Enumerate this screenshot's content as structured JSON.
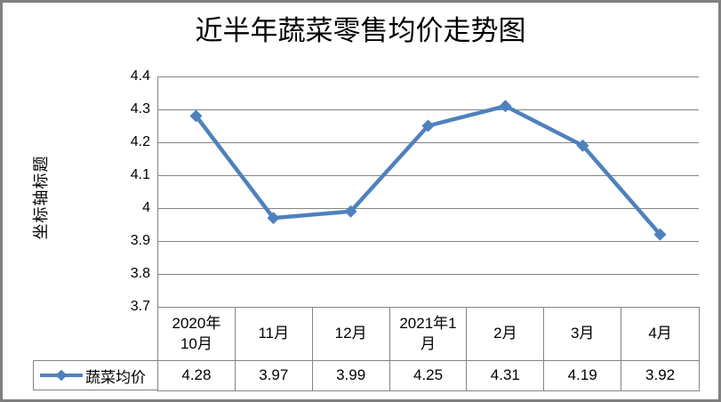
{
  "colors": {
    "line": "#4F81BD",
    "grid": "#848484",
    "frame": "#808080",
    "text": "#000000"
  },
  "chart_data": {
    "type": "line",
    "title": "近半年蔬菜零售均价走势图",
    "ylabel": "坐标轴标题",
    "xlabel": "",
    "categories": [
      "2020年10月",
      "11月",
      "12月",
      "2021年1月",
      "2月",
      "3月",
      "4月"
    ],
    "series": [
      {
        "name": "蔬菜均价",
        "values": [
          4.28,
          3.97,
          3.99,
          4.25,
          4.31,
          4.19,
          3.92
        ]
      }
    ],
    "ylim": [
      3.7,
      4.4
    ],
    "ytick_step": 0.1,
    "yticks": [
      "4.4",
      "4.3",
      "4.2",
      "4.1",
      "4",
      "3.9",
      "3.8",
      "3.7"
    ],
    "grid": true,
    "marker": "diamond",
    "legend_position": "bottom-left"
  },
  "table": {
    "headers": [
      "2020年\n10月",
      "11月",
      "12月",
      "2021年1\n月",
      "2月",
      "3月",
      "4月"
    ],
    "value_decimals": 2
  }
}
